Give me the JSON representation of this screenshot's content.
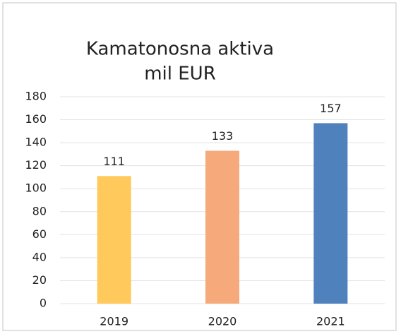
{
  "chart_data": {
    "type": "bar",
    "title": "Kamatonosna aktiva",
    "subtitle": "mil EUR",
    "categories": [
      "2019",
      "2020",
      "2021"
    ],
    "values": [
      111,
      133,
      157
    ],
    "colors": [
      "#ffc95c",
      "#f6aa7c",
      "#4f81bd"
    ],
    "ylim": [
      0,
      180
    ],
    "yticks": [
      0,
      20,
      40,
      60,
      80,
      100,
      120,
      140,
      160,
      180
    ],
    "grid": true
  }
}
